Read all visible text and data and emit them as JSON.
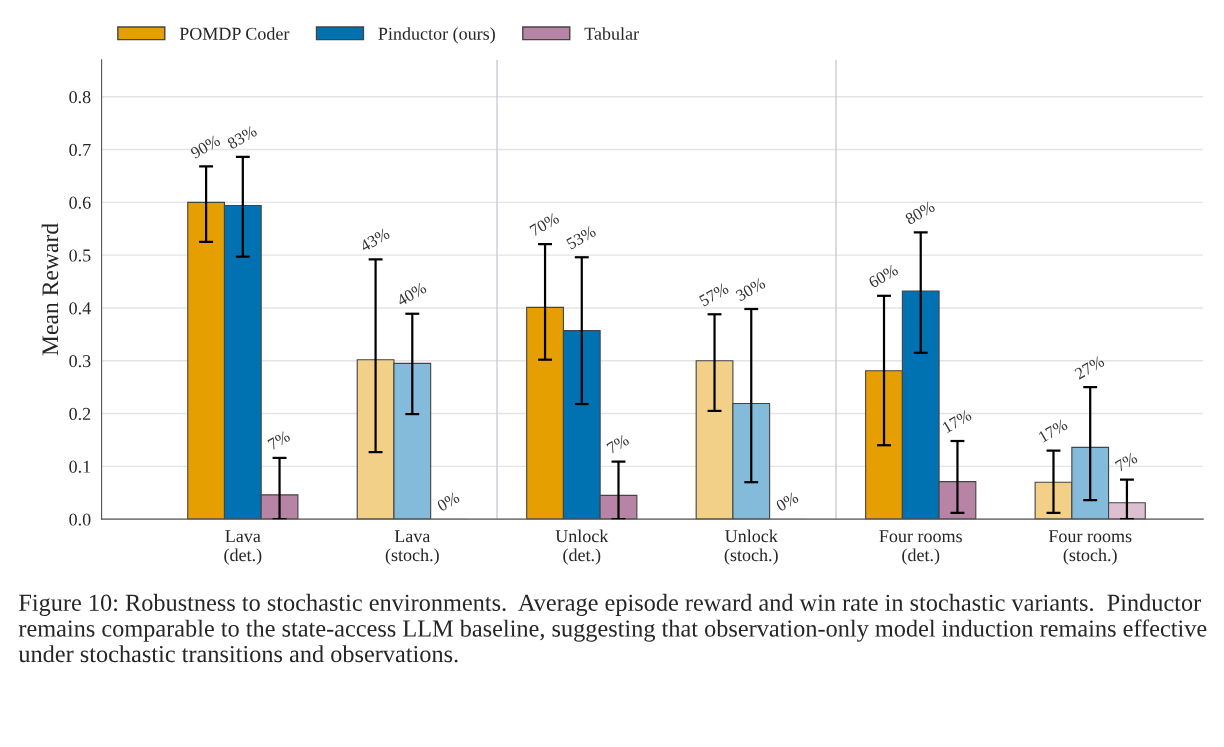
{
  "chart_data": {
    "type": "bar",
    "ylabel": "Mean Reward",
    "categories": [
      "Lava\n(det.)",
      "Lava\n(stoch.)",
      "Unlock\n(det.)",
      "Unlock\n(stoch.)",
      "Four rooms\n(det.)",
      "Four rooms\n(stoch.)"
    ],
    "series": [
      {
        "name": "POMDP Coder",
        "color": "#e69f00",
        "colors": [
          "#e69f00",
          "#f3d088",
          "#e69f00",
          "#f3d088",
          "#e69f00",
          "#f3d088"
        ],
        "values": [
          0.6,
          0.302,
          0.401,
          0.3,
          0.281,
          0.07
        ],
        "errors": [
          [
            0.525,
            0.668
          ],
          [
            0.127,
            0.492
          ],
          [
            0.302,
            0.521
          ],
          [
            0.205,
            0.388
          ],
          [
            0.14,
            0.423
          ],
          [
            0.012,
            0.13
          ]
        ]
      },
      {
        "name": "Pinductor (ours)",
        "color": "#0072b2",
        "colors": [
          "#0072b2",
          "#84bbdb",
          "#0072b2",
          "#84bbdb",
          "#0072b2",
          "#84bbdb"
        ],
        "values": [
          0.594,
          0.295,
          0.357,
          0.219,
          0.432,
          0.136
        ],
        "errors": [
          [
            0.497,
            0.686
          ],
          [
            0.199,
            0.389
          ],
          [
            0.218,
            0.496
          ],
          [
            0.07,
            0.398
          ],
          [
            0.315,
            0.543
          ],
          [
            0.036,
            0.25
          ]
        ]
      },
      {
        "name": "Tabular",
        "color": "#b884a6",
        "colors": [
          "#b884a6",
          "#dcc0d2",
          "#b884a6",
          "#dcc0d2",
          "#b884a6",
          "#dcc0d2"
        ],
        "values": [
          0.046,
          0.0,
          0.045,
          0.0,
          0.071,
          0.031
        ],
        "errors": [
          [
            0.0,
            0.116
          ],
          null,
          [
            0.0,
            0.109
          ],
          null,
          [
            0.012,
            0.148
          ],
          [
            0.0,
            0.075
          ]
        ]
      }
    ],
    "ylim": [
      0,
      0.87
    ],
    "yticks": [
      {
        "value": 0,
        "label": "0.0"
      },
      0.1,
      0.2,
      0.3,
      0.4,
      0.5,
      0.6,
      0.7,
      0.8
    ],
    "grid": "y",
    "legend": "top",
    "annotations": [
      "90%",
      "83%",
      "7%",
      "43%",
      "40%",
      "0%",
      "70%",
      "53%",
      "7%",
      "57%",
      "30%",
      "0%",
      "60%",
      "80%",
      "17%",
      "17%",
      "27%",
      "7%",
      "Figure 10: Robustness to stochastic environments.  Average episode reward and win rate in stochastic variants.  Pinductor remains comparable to the state-access LLM baseline, suggesting that observation-only model induction remains effective under stochastic transitions and observations."
    ]
  }
}
